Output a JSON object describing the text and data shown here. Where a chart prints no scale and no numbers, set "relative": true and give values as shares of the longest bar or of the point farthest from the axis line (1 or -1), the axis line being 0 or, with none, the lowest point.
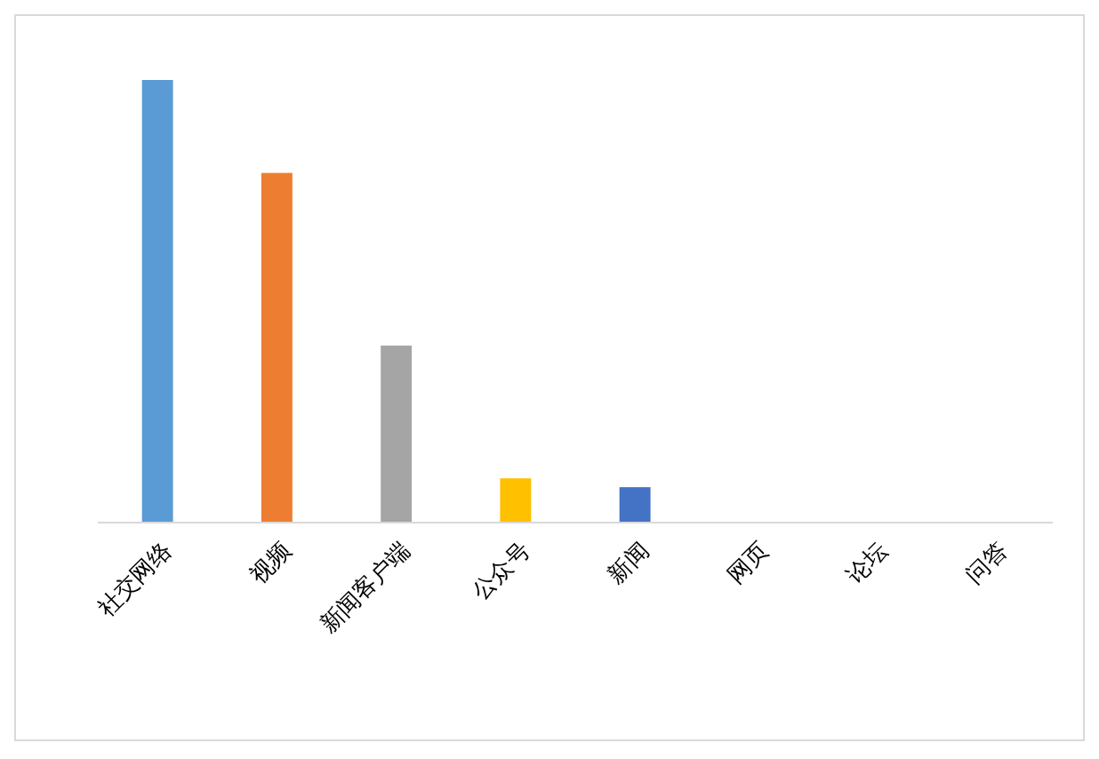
{
  "chart_data": {
    "type": "bar",
    "relative": true,
    "categories": [
      "社交网络",
      "视频",
      "新闻客户端",
      "公众号",
      "新闻",
      "网页",
      "论坛",
      "问答"
    ],
    "values": [
      1,
      0.79,
      0.4,
      0.1,
      0.08,
      0,
      0,
      0
    ],
    "colors": [
      "#5b9bd5",
      "#ed7d31",
      "#a5a5a5",
      "#ffc000",
      "#4472c4",
      "#70ad47",
      "#255e91",
      "#9e480e"
    ]
  }
}
